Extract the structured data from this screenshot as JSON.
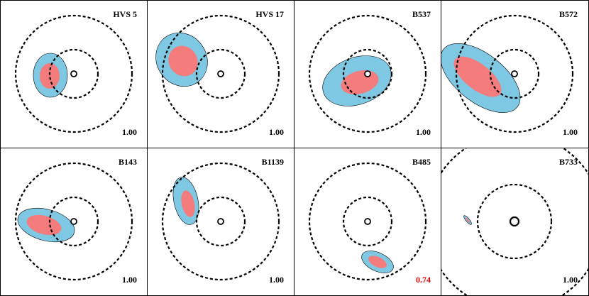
{
  "colors": {
    "outer_ellipse": "#7ec8e3",
    "inner_ellipse": "#f47c7c",
    "dashed_circle": "#000000",
    "value_default": "#000000",
    "value_highlight": "#e00000"
  },
  "panels": [
    {
      "name": "HVS 5",
      "value": "1.00",
      "highlight": false
    },
    {
      "name": "HVS 17",
      "value": "1.00",
      "highlight": false
    },
    {
      "name": "B537",
      "value": "1.00",
      "highlight": false
    },
    {
      "name": "B572",
      "value": "1.00",
      "highlight": false
    },
    {
      "name": "B143",
      "value": "1.00",
      "highlight": false
    },
    {
      "name": "B1139",
      "value": "1.00",
      "highlight": false
    },
    {
      "name": "B485",
      "value": "0.74",
      "highlight": true
    },
    {
      "name": "B733",
      "value": "1.00",
      "highlight": false
    }
  ]
}
